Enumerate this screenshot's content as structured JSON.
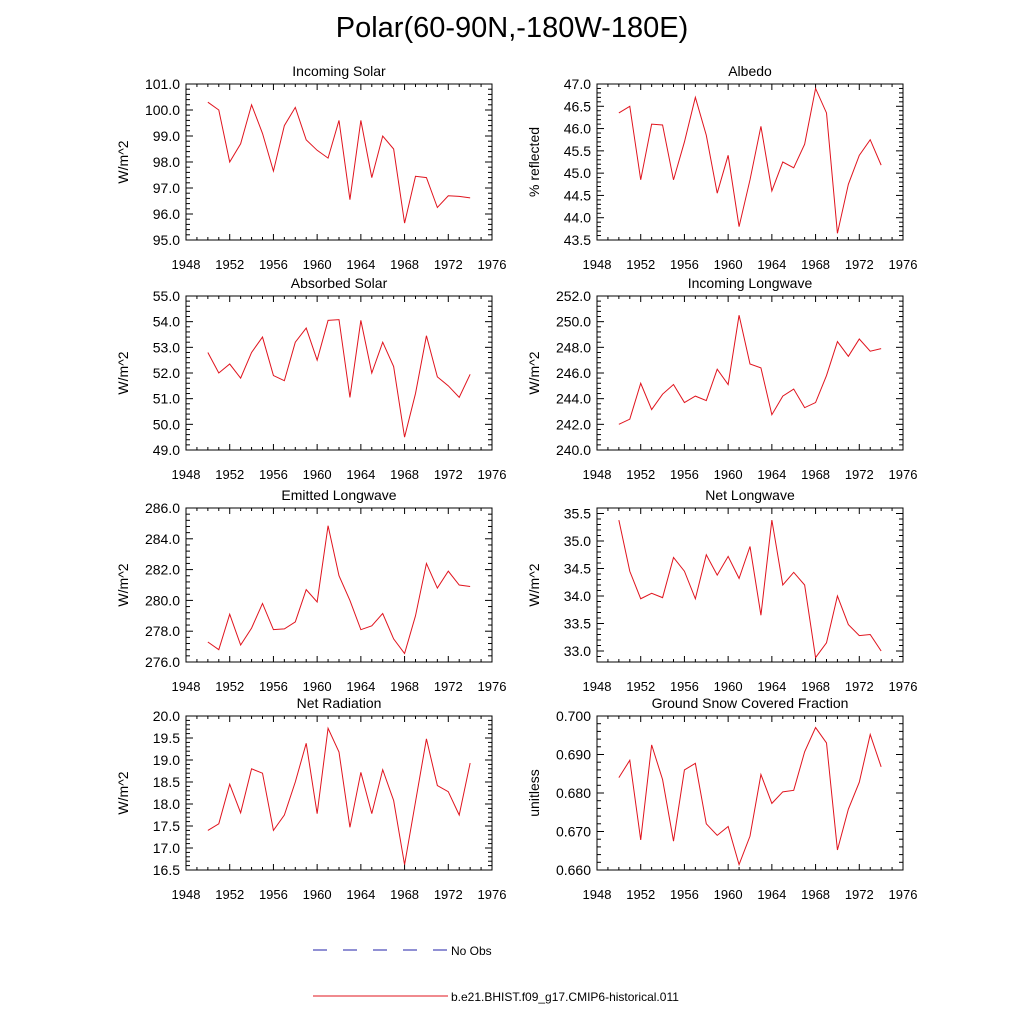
{
  "page": {
    "title": "Polar(60-90N,-180W-180E)"
  },
  "legend": {
    "entries": [
      {
        "label": "No Obs",
        "color": "#2222aa",
        "style": "dashed"
      },
      {
        "label": "b.e21.BHIST.f09_g17.CMIP6-historical.011",
        "color": "#e0141e",
        "style": "solid"
      }
    ]
  },
  "chart_data": [
    {
      "type": "line",
      "title": "Incoming Solar",
      "ylabel": "W/m^2",
      "xlim": [
        1948,
        1976
      ],
      "ylim": [
        95.0,
        101.0
      ],
      "xticks": [
        1948,
        1952,
        1956,
        1960,
        1964,
        1968,
        1972,
        1976
      ],
      "yticks": [
        "95.0",
        "96.0",
        "97.0",
        "98.0",
        "99.0",
        "100.0",
        "101.0"
      ],
      "series": [
        {
          "color": "#e0141e",
          "x": [
            1950,
            1951,
            1952,
            1953,
            1954,
            1955,
            1956,
            1957,
            1958,
            1959,
            1960,
            1961,
            1962,
            1963,
            1964,
            1965,
            1966,
            1967,
            1968,
            1969,
            1970,
            1971,
            1972,
            1973,
            1974
          ],
          "y": [
            100.3,
            100.0,
            98.0,
            98.7,
            100.2,
            99.1,
            97.65,
            99.4,
            100.1,
            98.85,
            98.45,
            98.15,
            99.6,
            96.55,
            99.6,
            97.4,
            99.0,
            98.5,
            95.65,
            97.45,
            97.4,
            96.25,
            96.7,
            96.68,
            96.62
          ]
        }
      ]
    },
    {
      "type": "line",
      "title": "Albedo",
      "ylabel": "% reflected",
      "xlim": [
        1948,
        1976
      ],
      "ylim": [
        43.5,
        47.0
      ],
      "xticks": [
        1948,
        1952,
        1956,
        1960,
        1964,
        1968,
        1972,
        1976
      ],
      "yticks": [
        "43.5",
        "44.0",
        "44.5",
        "45.0",
        "45.5",
        "46.0",
        "46.5",
        "47.0"
      ],
      "series": [
        {
          "color": "#e0141e",
          "x": [
            1950,
            1951,
            1952,
            1953,
            1954,
            1955,
            1956,
            1957,
            1958,
            1959,
            1960,
            1961,
            1962,
            1963,
            1964,
            1965,
            1966,
            1967,
            1968,
            1969,
            1970,
            1971,
            1972,
            1973,
            1974
          ],
          "y": [
            46.35,
            46.5,
            44.85,
            46.1,
            46.08,
            44.85,
            45.7,
            46.7,
            45.85,
            44.55,
            45.4,
            43.8,
            44.85,
            46.05,
            44.6,
            45.25,
            45.12,
            45.65,
            46.9,
            46.35,
            43.65,
            44.75,
            45.4,
            45.75,
            45.18
          ]
        }
      ]
    },
    {
      "type": "line",
      "title": "Absorbed Solar",
      "ylabel": "W/m^2",
      "xlim": [
        1948,
        1976
      ],
      "ylim": [
        49.0,
        55.0
      ],
      "xticks": [
        1948,
        1952,
        1956,
        1960,
        1964,
        1968,
        1972,
        1976
      ],
      "yticks": [
        "49.0",
        "50.0",
        "51.0",
        "52.0",
        "53.0",
        "54.0",
        "55.0"
      ],
      "series": [
        {
          "color": "#e0141e",
          "x": [
            1950,
            1951,
            1952,
            1953,
            1954,
            1955,
            1956,
            1957,
            1958,
            1959,
            1960,
            1961,
            1962,
            1963,
            1964,
            1965,
            1966,
            1967,
            1968,
            1969,
            1970,
            1971,
            1972,
            1973,
            1974
          ],
          "y": [
            52.8,
            52.0,
            52.35,
            51.8,
            52.8,
            53.4,
            51.9,
            51.7,
            53.2,
            53.75,
            52.5,
            54.05,
            54.08,
            51.05,
            54.05,
            52.0,
            53.2,
            52.25,
            49.5,
            51.2,
            53.45,
            51.85,
            51.5,
            51.05,
            51.95
          ]
        }
      ]
    },
    {
      "type": "line",
      "title": "Incoming Longwave",
      "ylabel": "W/m^2",
      "xlim": [
        1948,
        1976
      ],
      "ylim": [
        240.0,
        252.0
      ],
      "xticks": [
        1948,
        1952,
        1956,
        1960,
        1964,
        1968,
        1972,
        1976
      ],
      "yticks": [
        "240.0",
        "242.0",
        "244.0",
        "246.0",
        "248.0",
        "250.0",
        "252.0"
      ],
      "series": [
        {
          "color": "#e0141e",
          "x": [
            1950,
            1951,
            1952,
            1953,
            1954,
            1955,
            1956,
            1957,
            1958,
            1959,
            1960,
            1961,
            1962,
            1963,
            1964,
            1965,
            1966,
            1967,
            1968,
            1969,
            1970,
            1971,
            1972,
            1973,
            1974
          ],
          "y": [
            242.0,
            242.4,
            245.2,
            243.15,
            244.35,
            245.1,
            243.7,
            244.2,
            243.85,
            246.3,
            245.1,
            250.5,
            246.7,
            246.4,
            242.75,
            244.2,
            244.75,
            243.3,
            243.7,
            245.8,
            248.45,
            247.3,
            248.65,
            247.7,
            247.9
          ]
        }
      ]
    },
    {
      "type": "line",
      "title": "Emitted Longwave",
      "ylabel": "W/m^2",
      "xlim": [
        1948,
        1976
      ],
      "ylim": [
        276.0,
        286.0
      ],
      "xticks": [
        1948,
        1952,
        1956,
        1960,
        1964,
        1968,
        1972,
        1976
      ],
      "yticks": [
        "276.0",
        "278.0",
        "280.0",
        "282.0",
        "284.0",
        "286.0"
      ],
      "series": [
        {
          "color": "#e0141e",
          "x": [
            1950,
            1951,
            1952,
            1953,
            1954,
            1955,
            1956,
            1957,
            1958,
            1959,
            1960,
            1961,
            1962,
            1963,
            1964,
            1965,
            1966,
            1967,
            1968,
            1969,
            1970,
            1971,
            1972,
            1973,
            1974
          ],
          "y": [
            277.3,
            276.8,
            279.1,
            277.1,
            278.2,
            279.8,
            278.1,
            278.15,
            278.6,
            280.7,
            279.9,
            284.85,
            281.6,
            280.0,
            278.1,
            278.35,
            279.15,
            277.5,
            276.55,
            279.0,
            282.4,
            280.8,
            281.9,
            281.0,
            280.9
          ]
        }
      ]
    },
    {
      "type": "line",
      "title": "Net Longwave",
      "ylabel": "W/m^2",
      "xlim": [
        1948,
        1976
      ],
      "ylim": [
        32.8,
        35.6
      ],
      "xticks": [
        1948,
        1952,
        1956,
        1960,
        1964,
        1968,
        1972,
        1976
      ],
      "yticks": [
        "33.0",
        "33.5",
        "34.0",
        "34.5",
        "35.0",
        "35.5"
      ],
      "series": [
        {
          "color": "#e0141e",
          "x": [
            1950,
            1951,
            1952,
            1953,
            1954,
            1955,
            1956,
            1957,
            1958,
            1959,
            1960,
            1961,
            1962,
            1963,
            1964,
            1965,
            1966,
            1967,
            1968,
            1969,
            1970,
            1971,
            1972,
            1973,
            1974
          ],
          "y": [
            35.38,
            34.45,
            33.95,
            34.05,
            33.97,
            34.7,
            34.45,
            33.95,
            34.75,
            34.38,
            34.72,
            34.32,
            34.9,
            33.65,
            35.38,
            34.2,
            34.43,
            34.2,
            32.88,
            33.15,
            34.0,
            33.48,
            33.28,
            33.3,
            33.0
          ]
        }
      ]
    },
    {
      "type": "line",
      "title": "Net Radiation",
      "ylabel": "W/m^2",
      "xlim": [
        1948,
        1976
      ],
      "ylim": [
        16.5,
        20.0
      ],
      "xticks": [
        1948,
        1952,
        1956,
        1960,
        1964,
        1968,
        1972,
        1976
      ],
      "yticks": [
        "16.5",
        "17.0",
        "17.5",
        "18.0",
        "18.5",
        "19.0",
        "19.5",
        "20.0"
      ],
      "series": [
        {
          "color": "#e0141e",
          "x": [
            1950,
            1951,
            1952,
            1953,
            1954,
            1955,
            1956,
            1957,
            1958,
            1959,
            1960,
            1961,
            1962,
            1963,
            1964,
            1965,
            1966,
            1967,
            1968,
            1969,
            1970,
            1971,
            1972,
            1973,
            1974
          ],
          "y": [
            17.4,
            17.55,
            18.45,
            17.8,
            18.8,
            18.7,
            17.4,
            17.75,
            18.5,
            19.38,
            17.78,
            19.72,
            19.18,
            17.47,
            18.72,
            17.78,
            18.78,
            18.08,
            16.62,
            18.05,
            19.48,
            18.42,
            18.28,
            17.75,
            18.93
          ]
        }
      ]
    },
    {
      "type": "line",
      "title": "Ground Snow Covered Fraction",
      "ylabel": "unitless",
      "xlim": [
        1948,
        1976
      ],
      "ylim": [
        0.66,
        0.7
      ],
      "xticks": [
        1948,
        1952,
        1956,
        1960,
        1964,
        1968,
        1972,
        1976
      ],
      "yticks": [
        "0.660",
        "0.670",
        "0.680",
        "0.690",
        "0.700"
      ],
      "series": [
        {
          "color": "#e0141e",
          "x": [
            1950,
            1951,
            1952,
            1953,
            1954,
            1955,
            1956,
            1957,
            1958,
            1959,
            1960,
            1961,
            1962,
            1963,
            1964,
            1965,
            1966,
            1967,
            1968,
            1969,
            1970,
            1971,
            1972,
            1973,
            1974
          ],
          "y": [
            0.684,
            0.6885,
            0.6678,
            0.6925,
            0.6835,
            0.6675,
            0.686,
            0.6877,
            0.672,
            0.669,
            0.6713,
            0.6614,
            0.6688,
            0.6848,
            0.6773,
            0.6803,
            0.6807,
            0.6907,
            0.697,
            0.693,
            0.6652,
            0.6758,
            0.6828,
            0.6952,
            0.6868
          ]
        }
      ]
    }
  ]
}
